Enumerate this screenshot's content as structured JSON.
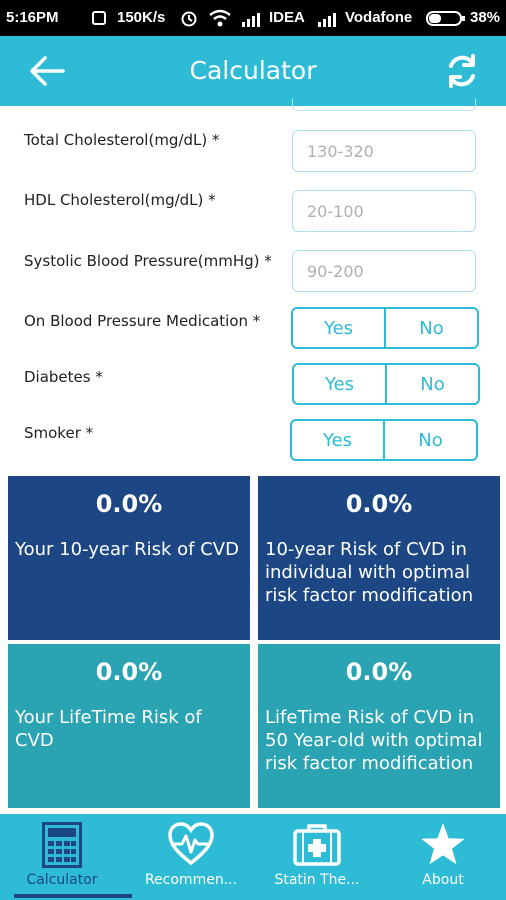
{
  "status_bar": {
    "time": "5:16PM",
    "speed": "150K/s",
    "carrier1": "IDEA",
    "carrier2": "Vodafone",
    "battery": "38%"
  },
  "app_bar": {
    "title": "Calculator",
    "back_icon": "arrow-left-icon",
    "refresh_icon": "refresh-icon"
  },
  "form": {
    "total_cholesterol": {
      "label": "Total Cholesterol(mg/dL) *",
      "placeholder": "130-320",
      "value": ""
    },
    "hdl_cholesterol": {
      "label": "HDL Cholesterol(mg/dL) *",
      "placeholder": "20-100",
      "value": ""
    },
    "systolic_bp": {
      "label": "Systolic Blood Pressure(mmHg) *",
      "placeholder": "90-200",
      "value": ""
    },
    "bp_medication": {
      "label": "On Blood Pressure Medication *",
      "yes": "Yes",
      "no": "No"
    },
    "diabetes": {
      "label": "Diabetes *",
      "yes": "Yes",
      "no": "No"
    },
    "smoker": {
      "label": "Smoker *",
      "yes": "Yes",
      "no": "No"
    }
  },
  "results": [
    {
      "value": "0.0%",
      "description": "Your 10-year Risk of CVD"
    },
    {
      "value": "0.0%",
      "description": "10-year Risk of CVD in individual with optimal risk factor modification"
    },
    {
      "value": "0.0%",
      "description": "Your LifeTime Risk of CVD"
    },
    {
      "value": "0.0%",
      "description": "LifeTime Risk of CVD in 50 Year-old with optimal risk factor modification"
    }
  ],
  "colors": {
    "primary": "#2dbbd6",
    "dark_tile": "#1d4784",
    "teal_tile": "#2aa3b2"
  },
  "bottom_nav": [
    {
      "label": "Calculator",
      "icon": "calculator-icon",
      "active": true
    },
    {
      "label": "Recommen...",
      "icon": "heart-pulse-icon",
      "active": false
    },
    {
      "label": "Statin The...",
      "icon": "medical-kit-icon",
      "active": false
    },
    {
      "label": "About",
      "icon": "star-icon",
      "active": false
    }
  ]
}
